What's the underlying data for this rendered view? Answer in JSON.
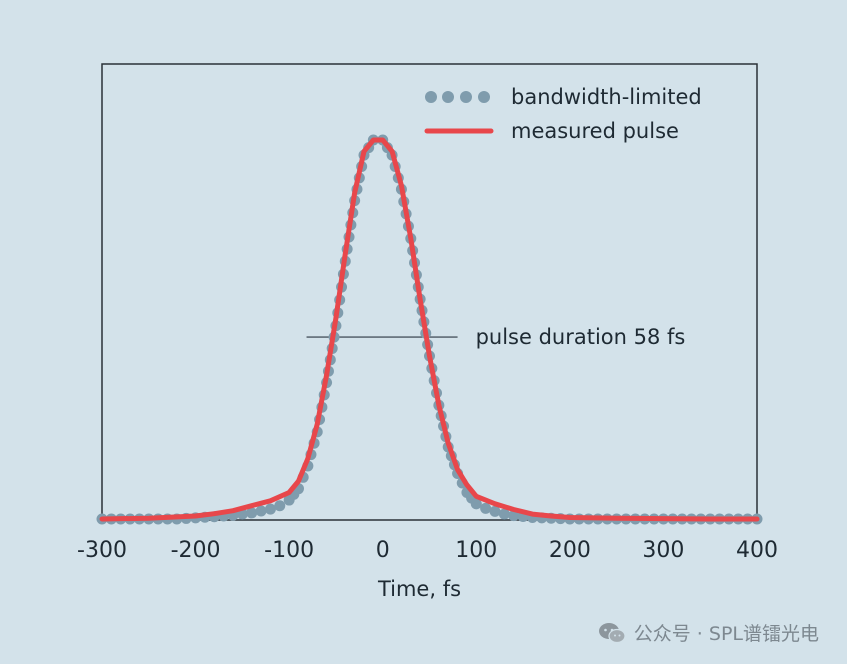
{
  "chart_data": {
    "type": "line",
    "title": "",
    "xlabel": "Time, fs",
    "ylabel": "",
    "xlim": [
      -300,
      400
    ],
    "ylim": [
      0,
      1.0
    ],
    "x_ticks": [
      -300,
      -200,
      -100,
      0,
      100,
      200,
      300,
      400
    ],
    "x_tick_labels": [
      "-300",
      "-200",
      "-100",
      "0",
      "100",
      "200",
      "300",
      "400"
    ],
    "grid": false,
    "legend_position": "top-right",
    "series": [
      {
        "name": "bandwidth-limited",
        "style": "dotted",
        "color": "#7f9cad",
        "x": [
          -300,
          -280,
          -260,
          -240,
          -220,
          -200,
          -180,
          -160,
          -140,
          -120,
          -110,
          -100,
          -90,
          -80,
          -70,
          -60,
          -50,
          -40,
          -30,
          -20,
          -10,
          0,
          10,
          20,
          30,
          40,
          50,
          60,
          70,
          80,
          90,
          100,
          110,
          120,
          130,
          140,
          160,
          180,
          200,
          220,
          240,
          260,
          280,
          300,
          320,
          340,
          360,
          380,
          400
        ],
        "y": [
          0.0,
          0.0,
          0.0,
          0.0,
          0.0,
          0.003,
          0.006,
          0.01,
          0.016,
          0.026,
          0.035,
          0.05,
          0.08,
          0.14,
          0.23,
          0.36,
          0.51,
          0.68,
          0.84,
          0.96,
          1.0,
          1.0,
          0.96,
          0.87,
          0.74,
          0.58,
          0.43,
          0.3,
          0.19,
          0.12,
          0.07,
          0.04,
          0.028,
          0.02,
          0.013,
          0.009,
          0.004,
          0.002,
          0.0,
          0.0,
          0.0,
          0.0,
          0.0,
          0.0,
          0.0,
          0.0,
          0.0,
          0.0,
          0.0
        ]
      },
      {
        "name": "measured pulse",
        "style": "solid",
        "color": "#e8474b",
        "x": [
          -300,
          -250,
          -200,
          -180,
          -160,
          -140,
          -120,
          -100,
          -90,
          -80,
          -70,
          -60,
          -50,
          -40,
          -30,
          -20,
          -10,
          0,
          10,
          20,
          30,
          40,
          50,
          60,
          70,
          80,
          90,
          100,
          120,
          140,
          160,
          180,
          200,
          250,
          300,
          350,
          400
        ],
        "y": [
          0.0,
          0.002,
          0.008,
          0.014,
          0.022,
          0.035,
          0.048,
          0.07,
          0.1,
          0.16,
          0.25,
          0.38,
          0.53,
          0.7,
          0.86,
          0.97,
          1.0,
          1.0,
          0.97,
          0.88,
          0.74,
          0.58,
          0.43,
          0.3,
          0.2,
          0.13,
          0.09,
          0.06,
          0.04,
          0.025,
          0.013,
          0.008,
          0.004,
          0.002,
          0.001,
          0.0,
          0.0
        ]
      }
    ],
    "annotations": [
      {
        "text": "pulse duration 58 fs",
        "x_from": -75,
        "x_to": 80,
        "y": 0.48
      }
    ]
  },
  "watermark": {
    "text": "公众号 · SPL谱镭光电",
    "icon": "wechat-icon"
  }
}
